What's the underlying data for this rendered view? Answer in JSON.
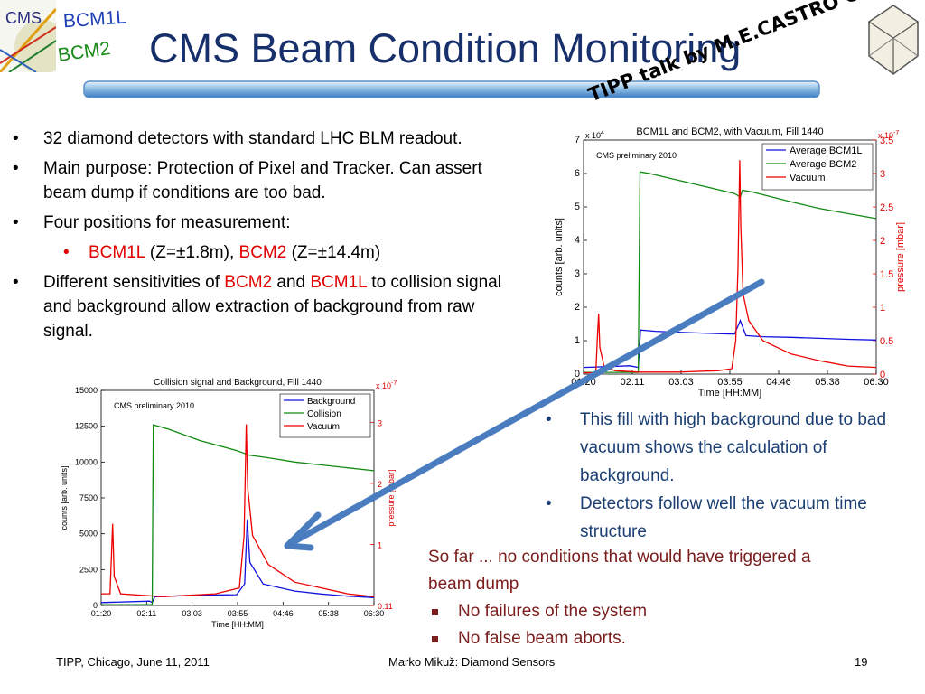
{
  "header": {
    "logo_text": "CMS",
    "tag_bcm1l": "BCM1L",
    "tag_bcm2": "BCM2",
    "title": "CMS Beam Condition Monitoring",
    "tipp_note": "TIPP talk by M.E.CASTRO CARBALLO"
  },
  "left_bullets": {
    "b1": "32 diamond detectors with standard LHC BLM readout.",
    "b2": "Main purpose: Protection of Pixel and Tracker. Can assert beam dump if conditions are too bad.",
    "b3": "Four positions for measurement:",
    "sub_bcm1l": "BCM1L",
    "sub_bcm1l_pos": " (Z=±1.8m), ",
    "sub_bcm2": "BCM2",
    "sub_bcm2_pos": " (Z=±14.4m)",
    "b4_a": "Different sensitivities of ",
    "b4_bcm2": "BCM2",
    "b4_and": " and ",
    "b4_bcm1l": "BCM1L",
    "b4_b": " to collision signal and background allow extraction of background from raw signal."
  },
  "right_bullets": {
    "r1": "This fill with high background due to bad vacuum shows the calculation of background.",
    "r2": "Detectors follow well the vacuum time structure"
  },
  "so_far": {
    "text": "So far ... no conditions that would have triggered a beam dump",
    "items": [
      "No failures of the system",
      "No false beam aborts."
    ]
  },
  "footer": {
    "left": "TIPP, Chicago, June 11, 2011",
    "center": "Marko Mikuž: Diamond Sensors",
    "page": "19"
  },
  "colors": {
    "title": "#17306b",
    "accent_red": "#e00000",
    "text_blue": "#1c3f73",
    "text_maroon": "#7a1d1d",
    "series_blue": "#1010e0",
    "series_green": "#108a10",
    "series_red": "#ee0000",
    "arrow": "#4a7cc0"
  },
  "chart_data": [
    {
      "type": "line",
      "title": "BCM1L and BCM2, with Vacuum, Fill 1440",
      "annotation": "CMS preliminary 2010",
      "xlabel": "Time [HH:MM]",
      "ylabel": "counts [arb. units]",
      "y2label": "pressure [mbar]",
      "y_multiplier": "x 10^4",
      "y2_multiplier": "x 10^-7",
      "x_ticks": [
        "01:20",
        "02:11",
        "03:03",
        "03:55",
        "04:46",
        "05:38",
        "06:30"
      ],
      "y_ticks": [
        0,
        1,
        2,
        3,
        4,
        5,
        6,
        7
      ],
      "y2_ticks": [
        0,
        0.5,
        1,
        1.5,
        2,
        2.5,
        3,
        3.5
      ],
      "ylim": [
        0,
        7
      ],
      "y2lim": [
        0,
        3.5
      ],
      "legend": "top-right",
      "x_hours": [
        1.333,
        6.5
      ],
      "series": [
        {
          "name": "Average BCM1L",
          "axis": "left",
          "points": [
            [
              1.333,
              0.2
            ],
            [
              2.15,
              0.25
            ],
            [
              2.3,
              0.2
            ],
            [
              2.34,
              1.32
            ],
            [
              2.6,
              1.28
            ],
            [
              3.2,
              1.24
            ],
            [
              3.9,
              1.2
            ],
            [
              4.0,
              1.2
            ],
            [
              4.1,
              1.6
            ],
            [
              4.2,
              1.15
            ],
            [
              4.5,
              1.12
            ],
            [
              5.0,
              1.1
            ],
            [
              5.5,
              1.07
            ],
            [
              6.0,
              1.04
            ],
            [
              6.5,
              1.02
            ]
          ]
        },
        {
          "name": "Average BCM2",
          "axis": "left",
          "points": [
            [
              1.333,
              0.05
            ],
            [
              2.3,
              0.05
            ],
            [
              2.33,
              6.05
            ],
            [
              2.5,
              6.0
            ],
            [
              3.0,
              5.8
            ],
            [
              3.5,
              5.6
            ],
            [
              4.0,
              5.4
            ],
            [
              4.1,
              5.3
            ],
            [
              4.14,
              5.5
            ],
            [
              4.3,
              5.45
            ],
            [
              5.0,
              5.15
            ],
            [
              5.5,
              4.95
            ],
            [
              6.0,
              4.8
            ],
            [
              6.5,
              4.65
            ]
          ]
        },
        {
          "name": "Vacuum",
          "axis": "right",
          "points": [
            [
              1.333,
              0.02
            ],
            [
              1.55,
              0.02
            ],
            [
              1.58,
              0.6
            ],
            [
              1.6,
              0.9
            ],
            [
              1.62,
              0.4
            ],
            [
              1.7,
              0.1
            ],
            [
              1.9,
              0.05
            ],
            [
              2.3,
              0.03
            ],
            [
              3.0,
              0.03
            ],
            [
              3.7,
              0.05
            ],
            [
              3.95,
              0.08
            ],
            [
              4.02,
              0.5
            ],
            [
              4.06,
              1.6
            ],
            [
              4.09,
              3.2
            ],
            [
              4.11,
              2.2
            ],
            [
              4.15,
              1.2
            ],
            [
              4.25,
              0.8
            ],
            [
              4.5,
              0.5
            ],
            [
              5.0,
              0.3
            ],
            [
              5.5,
              0.2
            ],
            [
              6.0,
              0.12
            ],
            [
              6.5,
              0.1
            ]
          ]
        }
      ]
    },
    {
      "type": "line",
      "title": "Collision signal and Background, Fill 1440",
      "annotation": "CMS preliminary 2010",
      "xlabel": "Time [HH:MM]",
      "ylabel": "counts [arb. units]",
      "y2label": "pressure [mbar]",
      "y2_multiplier": "x 10^-7",
      "x_ticks": [
        "01:20",
        "02:11",
        "03:03",
        "03:55",
        "04:46",
        "05:38",
        "06:30"
      ],
      "y_ticks": [
        0,
        2500,
        5000,
        7500,
        10000,
        12500,
        15000
      ],
      "y2_ticks": [
        "0.11",
        "1",
        "2",
        "3"
      ],
      "ylim": [
        0,
        15000
      ],
      "legend": "top-right",
      "series": [
        {
          "name": "Background",
          "axis": "left",
          "points": [
            [
              1.333,
              200
            ],
            [
              2.25,
              300
            ],
            [
              2.3,
              200
            ],
            [
              2.35,
              600
            ],
            [
              3.0,
              700
            ],
            [
              3.9,
              750
            ],
            [
              4.05,
              1500
            ],
            [
              4.1,
              6000
            ],
            [
              4.15,
              3000
            ],
            [
              4.4,
              1500
            ],
            [
              5.0,
              1000
            ],
            [
              5.5,
              800
            ],
            [
              6.0,
              650
            ],
            [
              6.5,
              550
            ]
          ]
        },
        {
          "name": "Collision",
          "axis": "left",
          "points": [
            [
              1.333,
              50
            ],
            [
              2.3,
              50
            ],
            [
              2.32,
              12600
            ],
            [
              2.6,
              12300
            ],
            [
              3.2,
              11500
            ],
            [
              3.9,
              10800
            ],
            [
              4.05,
              10600
            ],
            [
              4.1,
              10500
            ],
            [
              4.5,
              10300
            ],
            [
              5.0,
              10000
            ],
            [
              5.5,
              9800
            ],
            [
              6.0,
              9600
            ],
            [
              6.5,
              9400
            ]
          ]
        },
        {
          "name": "Vacuum",
          "axis": "right",
          "points": [
            [
              1.333,
              0.2
            ],
            [
              1.5,
              0.2
            ],
            [
              1.55,
              1.4
            ],
            [
              1.58,
              0.5
            ],
            [
              1.7,
              0.2
            ],
            [
              2.5,
              0.15
            ],
            [
              3.5,
              0.2
            ],
            [
              3.95,
              0.3
            ],
            [
              4.04,
              1.2
            ],
            [
              4.08,
              3.1
            ],
            [
              4.11,
              2.0
            ],
            [
              4.2,
              1.2
            ],
            [
              4.5,
              0.7
            ],
            [
              5.0,
              0.4
            ],
            [
              5.5,
              0.3
            ],
            [
              6.0,
              0.2
            ],
            [
              6.5,
              0.15
            ]
          ]
        }
      ]
    }
  ]
}
